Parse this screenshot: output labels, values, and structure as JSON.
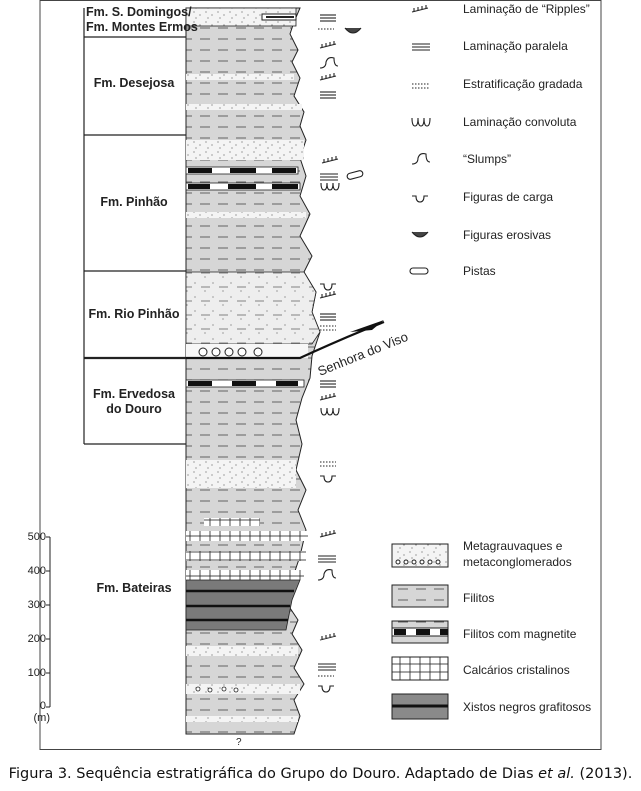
{
  "formations": {
    "s_domingos_line1": "Fm. S. Domingos/",
    "s_domingos_line2": "Fm. Montes Ermos",
    "desejosa": "Fm. Desejosa",
    "pinhao": "Fm. Pinhão",
    "rio_pinhao": "Fm. Rio Pinhão",
    "ervedosa_line1": "Fm. Ervedosa",
    "ervedosa_line2": "do Douro",
    "bateiras": "Fm. Bateiras"
  },
  "thrust_label": "Senhora do Viso",
  "column_bottom_mark": "?",
  "scale": {
    "ticks": [
      "500",
      "400",
      "300",
      "200",
      "100",
      "0"
    ],
    "unit": "(m)"
  },
  "structures_legend": [
    {
      "icon": "ripple-lamination-icon",
      "label": "Laminação de “Ripples”"
    },
    {
      "icon": "parallel-lamination-icon",
      "label": "Laminação paralela"
    },
    {
      "icon": "graded-bedding-icon",
      "label": "Estratificação gradada"
    },
    {
      "icon": "convolute-lamination-icon",
      "label": "Laminação convoluta"
    },
    {
      "icon": "slump-icon",
      "label": "“Slumps”"
    },
    {
      "icon": "load-cast-icon",
      "label": "Figuras de carga"
    },
    {
      "icon": "erosive-figure-icon",
      "label": "Figuras erosivas"
    },
    {
      "icon": "trace-fossil-icon",
      "label": "Pistas"
    }
  ],
  "lithology_legend": [
    {
      "pattern": "metagreywacke-swatch",
      "label_line1": "Metagrauvaques e",
      "label_line2": "metaconglomerados"
    },
    {
      "pattern": "phyllite-swatch",
      "label_line1": "Filitos"
    },
    {
      "pattern": "magnetite-phyllite-swatch",
      "label_line1": "Filitos com magnetite"
    },
    {
      "pattern": "limestone-swatch",
      "label_line1": "Calcários cristalinos"
    },
    {
      "pattern": "graphitic-schist-swatch",
      "label_line1": "Xistos negros grafitosos"
    }
  ],
  "caption": {
    "text_before": "Figura 3. Sequência estratigráfica do Grupo do Douro. Adaptado de Dias ",
    "italic": "et al.",
    "text_after": " (2013)."
  },
  "colors": {
    "phyllite": "#d6d6d6",
    "greywacke": "#f4f4f4",
    "graphitic": "#7a7a7a",
    "line": "#222222"
  }
}
